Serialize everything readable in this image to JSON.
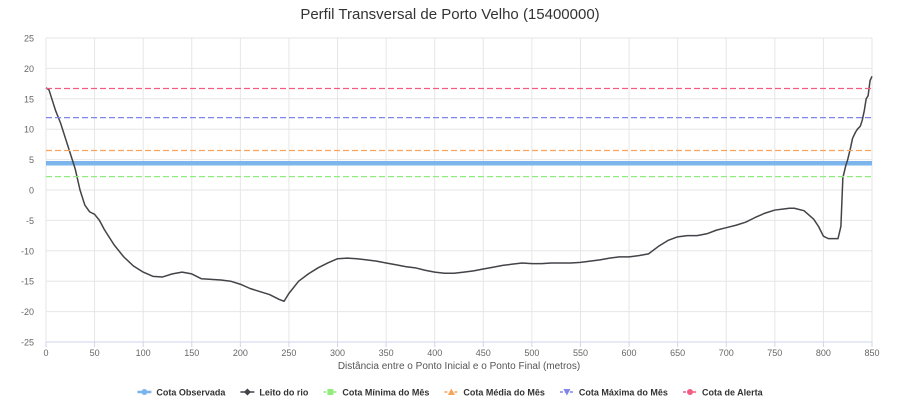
{
  "chart_data": {
    "type": "line",
    "title": "Perfil Transversal de Porto Velho (15400000)",
    "xlabel": "Distância entre o Ponto Inicial e o Ponto Final (metros)",
    "ylabel": "",
    "xlim": [
      0,
      850
    ],
    "ylim": [
      -25,
      25
    ],
    "x_ticks": [
      0,
      50,
      100,
      150,
      200,
      250,
      300,
      350,
      400,
      450,
      500,
      550,
      600,
      650,
      700,
      750,
      800,
      850
    ],
    "y_ticks": [
      -25,
      -20,
      -15,
      -10,
      -5,
      0,
      5,
      10,
      15,
      20,
      25
    ],
    "grid": true,
    "legend_position": "bottom",
    "series": [
      {
        "name": "Cota Observada",
        "type": "hline",
        "value": 4.4,
        "x_range": [
          0,
          850
        ],
        "color": "#7cb5ec",
        "style": "solid",
        "marker": "circle"
      },
      {
        "name": "Leito do rio",
        "type": "line",
        "color": "#434348",
        "marker": "diamond",
        "x": [
          0,
          3,
          6,
          10,
          15,
          20,
          25,
          30,
          35,
          40,
          45,
          50,
          55,
          60,
          70,
          80,
          90,
          100,
          110,
          120,
          130,
          140,
          150,
          160,
          170,
          180,
          190,
          200,
          210,
          220,
          230,
          240,
          245,
          250,
          260,
          270,
          280,
          290,
          300,
          310,
          320,
          330,
          340,
          350,
          360,
          370,
          380,
          390,
          400,
          410,
          420,
          430,
          440,
          450,
          460,
          470,
          480,
          490,
          500,
          510,
          520,
          530,
          540,
          550,
          560,
          570,
          580,
          590,
          600,
          610,
          620,
          630,
          640,
          650,
          660,
          670,
          680,
          690,
          700,
          710,
          720,
          730,
          740,
          750,
          760,
          765,
          770,
          780,
          790,
          795,
          800,
          805,
          810,
          815,
          818,
          820,
          823,
          825,
          828,
          830,
          833,
          835,
          838,
          840,
          842,
          844,
          846,
          848,
          850
        ],
        "y": [
          16.8,
          16.5,
          15.0,
          13.0,
          11.0,
          8.5,
          6.0,
          3.5,
          0.0,
          -2.5,
          -3.6,
          -4.0,
          -5.0,
          -6.5,
          -9.0,
          -11.0,
          -12.5,
          -13.5,
          -14.2,
          -14.3,
          -13.8,
          -13.5,
          -13.8,
          -14.6,
          -14.7,
          -14.8,
          -15.0,
          -15.5,
          -16.2,
          -16.7,
          -17.2,
          -18.0,
          -18.3,
          -17.0,
          -15.0,
          -13.8,
          -12.8,
          -12.0,
          -11.3,
          -11.2,
          -11.3,
          -11.5,
          -11.7,
          -12.0,
          -12.3,
          -12.6,
          -12.8,
          -13.2,
          -13.5,
          -13.7,
          -13.7,
          -13.5,
          -13.3,
          -13.0,
          -12.7,
          -12.4,
          -12.2,
          -12.0,
          -12.1,
          -12.1,
          -12.0,
          -12.0,
          -12.0,
          -11.9,
          -11.7,
          -11.5,
          -11.2,
          -11.0,
          -11.0,
          -10.8,
          -10.5,
          -9.3,
          -8.3,
          -7.7,
          -7.5,
          -7.5,
          -7.2,
          -6.6,
          -6.2,
          -5.8,
          -5.3,
          -4.5,
          -3.8,
          -3.3,
          -3.1,
          -3.0,
          -3.0,
          -3.4,
          -4.8,
          -6.0,
          -7.6,
          -8.0,
          -8.0,
          -8.0,
          -6.0,
          2.0,
          4.0,
          5.0,
          7.0,
          8.5,
          9.5,
          10.0,
          10.5,
          11.5,
          13.0,
          15.0,
          15.5,
          18.0,
          18.7
        ]
      },
      {
        "name": "Cota Mínima do Mês",
        "type": "hline",
        "value": 2.2,
        "x_range": [
          0,
          850
        ],
        "color": "#90ed7d",
        "style": "dashed",
        "marker": "square"
      },
      {
        "name": "Cota Média do Mês",
        "type": "hline",
        "value": 6.5,
        "x_range": [
          0,
          850
        ],
        "color": "#f7a35c",
        "style": "dashed",
        "marker": "triangle"
      },
      {
        "name": "Cota Máxima do Mês",
        "type": "hline",
        "value": 11.9,
        "x_range": [
          0,
          850
        ],
        "color": "#8085e9",
        "style": "dashed",
        "marker": "triangle-down"
      },
      {
        "name": "Cota de Alerta",
        "type": "hline",
        "value": 16.7,
        "x_range": [
          0,
          850
        ],
        "color": "#f15c80",
        "style": "dashed",
        "marker": "circle"
      }
    ]
  }
}
